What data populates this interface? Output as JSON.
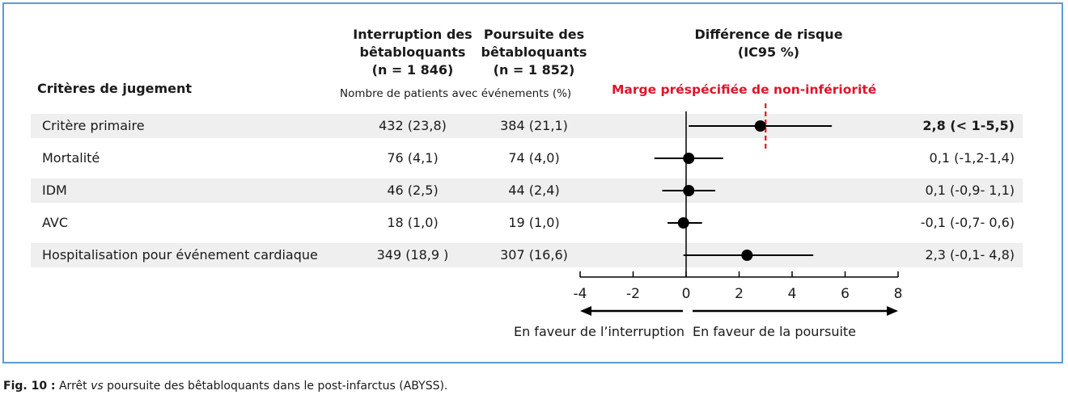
{
  "headers": {
    "criteria": "Critères de jugement",
    "col1": [
      "Interruption des",
      "bêtabloquants",
      "(n = 1 846)"
    ],
    "col2": [
      "Poursuite des",
      "bêtabloquants",
      "(n = 1 852)"
    ],
    "events_note": "Nombre de patients avec événements (%)",
    "risk_title": [
      "Différence de risque",
      "(IC95 %)"
    ],
    "margin_label": "Marge préspécifiée de non-infériorité"
  },
  "chart_data": {
    "type": "forest",
    "xlim": [
      -4,
      8
    ],
    "xticks": [
      -4,
      -2,
      0,
      2,
      4,
      6,
      8
    ],
    "xtick_labels": [
      "-4",
      "-2",
      "0",
      "2",
      "4",
      "6",
      "8"
    ],
    "margin_value": 3,
    "arrow_left_label": "En faveur de l’interruption",
    "arrow_right_label": "En faveur de la poursuite",
    "rows": [
      {
        "label": "Critère primaire",
        "col1": "432 (23,8)",
        "col2": "384 (21,1)",
        "estimate": 2.8,
        "lower": 0.1,
        "upper": 5.5,
        "ci_text": "2,8  (< 1-5,5)",
        "bold": true
      },
      {
        "label": "Mortalité",
        "col1": "76 (4,1)",
        "col2": "74 (4,0)",
        "estimate": 0.1,
        "lower": -1.2,
        "upper": 1.4,
        "ci_text": "0,1  (-1,2-1,4)",
        "bold": false
      },
      {
        "label": "IDM",
        "col1": "46 (2,5)",
        "col2": "44 (2,4)",
        "estimate": 0.1,
        "lower": -0.9,
        "upper": 1.1,
        "ci_text": "0,1  (-0,9- 1,1)",
        "bold": false
      },
      {
        "label": "AVC",
        "col1": "18 (1,0)",
        "col2": "19 (1,0)",
        "estimate": -0.1,
        "lower": -0.7,
        "upper": 0.6,
        "ci_text": "-0,1  (-0,7- 0,6)",
        "bold": false
      },
      {
        "label": "Hospitalisation pour événement cardiaque",
        "col1": "349 (18,9  )",
        "col2": "307 (16,6)",
        "estimate": 2.3,
        "lower": -0.1,
        "upper": 4.8,
        "ci_text": "2,3  (-0,1- 4,8)",
        "bold": false
      }
    ]
  },
  "caption": {
    "label": "Fig. 10 :",
    "text_before": " Arrêt ",
    "italic": "vs",
    "text_after": " poursuite des bêtabloquants dans le post-infarctus (ABYSS)."
  }
}
